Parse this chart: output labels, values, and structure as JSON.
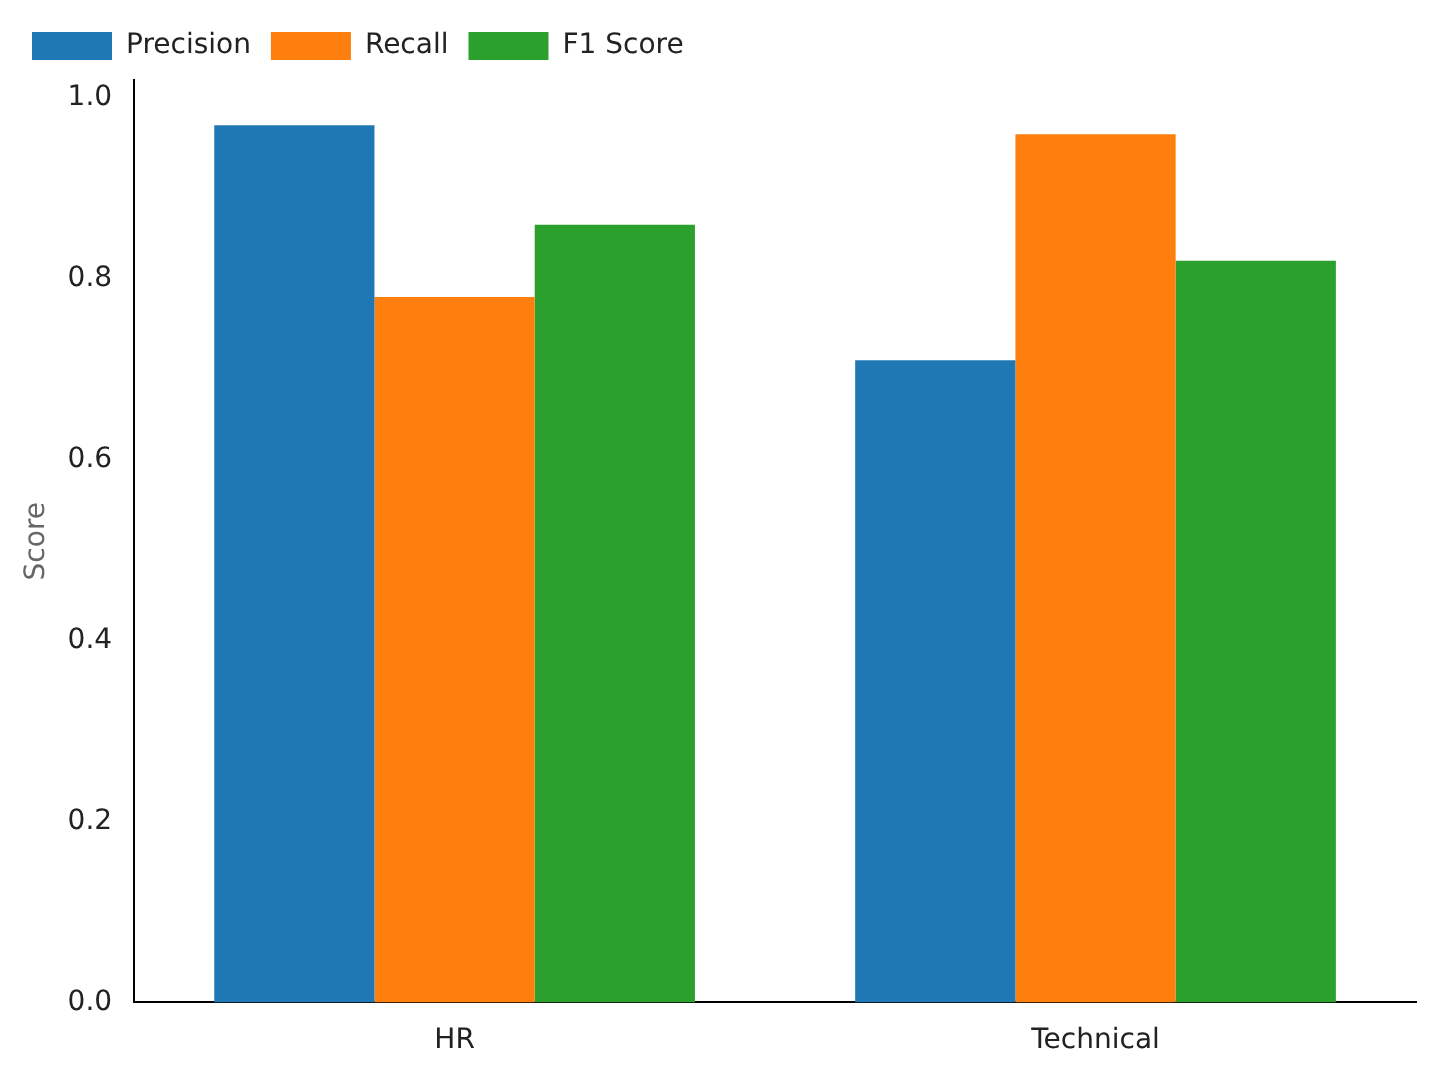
{
  "chart_data": {
    "type": "bar",
    "ylabel": "Score",
    "categories": [
      "HR",
      "Technical"
    ],
    "series": [
      {
        "name": "Precision",
        "color": "#1f77b4",
        "values": [
          0.97,
          0.71
        ]
      },
      {
        "name": "Recall",
        "color": "#ff7f0e",
        "values": [
          0.78,
          0.96
        ]
      },
      {
        "name": "F1 Score",
        "color": "#2ca02c",
        "values": [
          0.86,
          0.82
        ]
      }
    ],
    "ylim": [
      0,
      1.02
    ],
    "yticks": [
      {
        "value": 0,
        "label": "0.0"
      },
      {
        "value": 0.2,
        "label": "0.2"
      },
      {
        "value": 0.4,
        "label": "0.4"
      },
      {
        "value": 0.6,
        "label": "0.6"
      },
      {
        "value": 0.8,
        "label": "0.8"
      },
      {
        "value": 1,
        "label": "1.0"
      }
    ],
    "legend": "top left",
    "grid": false
  }
}
